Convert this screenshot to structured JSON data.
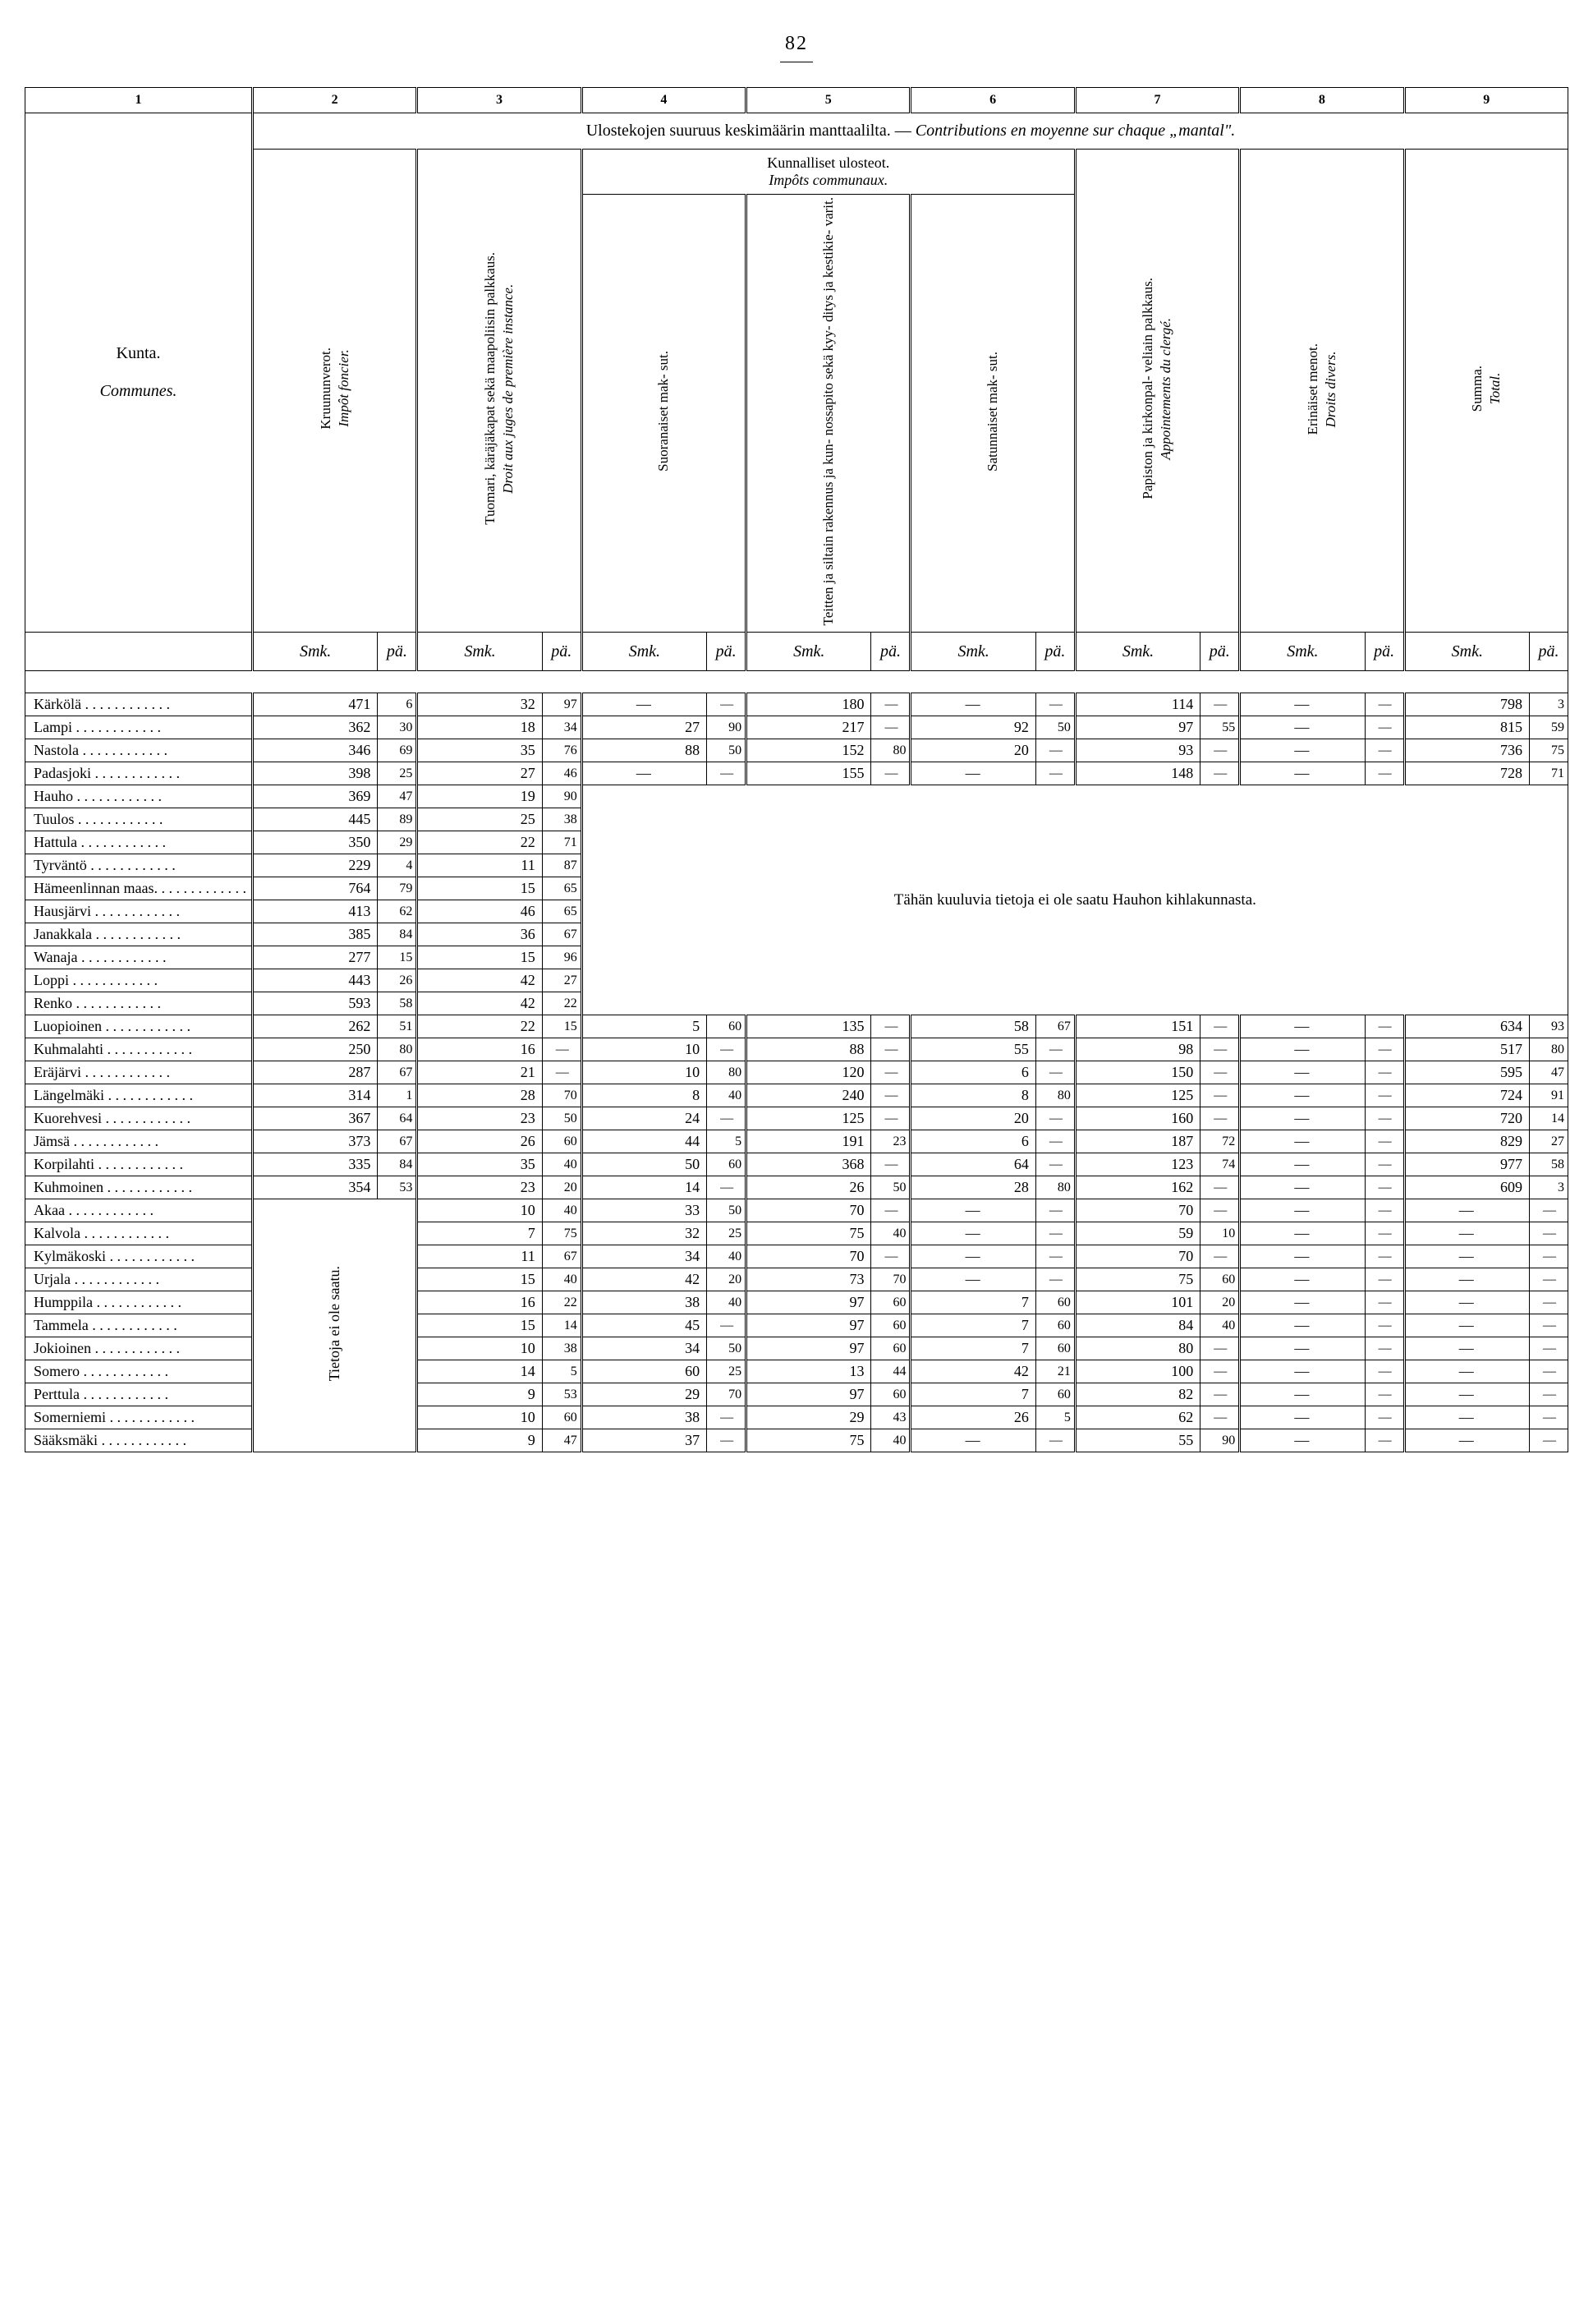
{
  "page_number": "82",
  "spanning_header": "Ulostekojen suuruus keskimäärin manttaalilta. —",
  "spanning_header_italic": "Contributions en moyenne sur chaque „mantal\".",
  "kunta_header": "Kunta.",
  "communes_header": "Communes.",
  "col_nums": [
    "1",
    "2",
    "3",
    "4",
    "5",
    "6",
    "7",
    "8",
    "9"
  ],
  "headers": {
    "kruunu": "Kruununverot.",
    "kruunu_it": "Impôt foncier.",
    "tuomari": "Tuomari, käräjäkapat sekä maapoliisin palkkaus.",
    "tuomari_it": "Droit aux juges de première instance.",
    "kunnalliset": "Kunnalliset ulosteot.",
    "kunnalliset_it": "Impôts communaux.",
    "suoranaiset": "Suoranaiset mak- sut.",
    "teitten": "Teitten ja siltain rakennus ja kun- nossapito sekä kyy- ditys ja kestikie- varit.",
    "satunnaiset": "Satunnaiset mak- sut.",
    "papiston": "Papiston ja kirkonpal- veliain palkkaus.",
    "papiston_it": "Appointements du clergé.",
    "erinaiset": "Erinäiset menot.",
    "erinaiset_it": "Droits divers.",
    "summa": "Summa.",
    "summa_it": "Total."
  },
  "unit_mk": "Smk.",
  "unit_p": "pä.",
  "note_hauhon": "Tähän kuuluvia tietoja ei ole saatu Hauhon kihlakunnasta.",
  "note_tietoja": "Tietoja ei ole saatu.",
  "rows": [
    {
      "name": "Kärkölä",
      "c2": "471",
      "c2p": "6",
      "c3": "32",
      "c3p": "97",
      "c4": "—",
      "c4p": "—",
      "c5": "180",
      "c5p": "—",
      "c6": "—",
      "c6p": "—",
      "c7": "114",
      "c7p": "—",
      "c8": "—",
      "c8p": "—",
      "c9": "798",
      "c9p": "3"
    },
    {
      "name": "Lampi",
      "c2": "362",
      "c2p": "30",
      "c3": "18",
      "c3p": "34",
      "c4": "27",
      "c4p": "90",
      "c5": "217",
      "c5p": "—",
      "c6": "92",
      "c6p": "50",
      "c7": "97",
      "c7p": "55",
      "c8": "—",
      "c8p": "—",
      "c9": "815",
      "c9p": "59"
    },
    {
      "name": "Nastola",
      "c2": "346",
      "c2p": "69",
      "c3": "35",
      "c3p": "76",
      "c4": "88",
      "c4p": "50",
      "c5": "152",
      "c5p": "80",
      "c6": "20",
      "c6p": "—",
      "c7": "93",
      "c7p": "—",
      "c8": "—",
      "c8p": "—",
      "c9": "736",
      "c9p": "75"
    },
    {
      "name": "Padasjoki",
      "c2": "398",
      "c2p": "25",
      "c3": "27",
      "c3p": "46",
      "c4": "—",
      "c4p": "—",
      "c5": "155",
      "c5p": "—",
      "c6": "—",
      "c6p": "—",
      "c7": "148",
      "c7p": "—",
      "c8": "—",
      "c8p": "—",
      "c9": "728",
      "c9p": "71"
    },
    {
      "name": "Hauho",
      "c2": "369",
      "c2p": "47",
      "c3": "19",
      "c3p": "90"
    },
    {
      "name": "Tuulos",
      "c2": "445",
      "c2p": "89",
      "c3": "25",
      "c3p": "38"
    },
    {
      "name": "Hattula",
      "c2": "350",
      "c2p": "29",
      "c3": "22",
      "c3p": "71"
    },
    {
      "name": "Tyrväntö",
      "c2": "229",
      "c2p": "4",
      "c3": "11",
      "c3p": "87"
    },
    {
      "name": "Hämeenlinnan maas.",
      "c2": "764",
      "c2p": "79",
      "c3": "15",
      "c3p": "65"
    },
    {
      "name": "Hausjärvi",
      "c2": "413",
      "c2p": "62",
      "c3": "46",
      "c3p": "65"
    },
    {
      "name": "Janakkala",
      "c2": "385",
      "c2p": "84",
      "c3": "36",
      "c3p": "67"
    },
    {
      "name": "Wanaja",
      "c2": "277",
      "c2p": "15",
      "c3": "15",
      "c3p": "96"
    },
    {
      "name": "Loppi",
      "c2": "443",
      "c2p": "26",
      "c3": "42",
      "c3p": "27"
    },
    {
      "name": "Renko",
      "c2": "593",
      "c2p": "58",
      "c3": "42",
      "c3p": "22"
    },
    {
      "name": "Luopioinen",
      "c2": "262",
      "c2p": "51",
      "c3": "22",
      "c3p": "15",
      "c4": "5",
      "c4p": "60",
      "c5": "135",
      "c5p": "—",
      "c6": "58",
      "c6p": "67",
      "c7": "151",
      "c7p": "—",
      "c8": "—",
      "c8p": "—",
      "c9": "634",
      "c9p": "93"
    },
    {
      "name": "Kuhmalahti",
      "c2": "250",
      "c2p": "80",
      "c3": "16",
      "c3p": "—",
      "c4": "10",
      "c4p": "—",
      "c5": "88",
      "c5p": "—",
      "c6": "55",
      "c6p": "—",
      "c7": "98",
      "c7p": "—",
      "c8": "—",
      "c8p": "—",
      "c9": "517",
      "c9p": "80"
    },
    {
      "name": "Eräjärvi",
      "c2": "287",
      "c2p": "67",
      "c3": "21",
      "c3p": "—",
      "c4": "10",
      "c4p": "80",
      "c5": "120",
      "c5p": "—",
      "c6": "6",
      "c6p": "—",
      "c7": "150",
      "c7p": "—",
      "c8": "—",
      "c8p": "—",
      "c9": "595",
      "c9p": "47"
    },
    {
      "name": "Längelmäki",
      "c2": "314",
      "c2p": "1",
      "c3": "28",
      "c3p": "70",
      "c4": "8",
      "c4p": "40",
      "c5": "240",
      "c5p": "—",
      "c6": "8",
      "c6p": "80",
      "c7": "125",
      "c7p": "—",
      "c8": "—",
      "c8p": "—",
      "c9": "724",
      "c9p": "91"
    },
    {
      "name": "Kuorehvesi",
      "c2": "367",
      "c2p": "64",
      "c3": "23",
      "c3p": "50",
      "c4": "24",
      "c4p": "—",
      "c5": "125",
      "c5p": "—",
      "c6": "20",
      "c6p": "—",
      "c7": "160",
      "c7p": "—",
      "c8": "—",
      "c8p": "—",
      "c9": "720",
      "c9p": "14"
    },
    {
      "name": "Jämsä",
      "c2": "373",
      "c2p": "67",
      "c3": "26",
      "c3p": "60",
      "c4": "44",
      "c4p": "5",
      "c5": "191",
      "c5p": "23",
      "c6": "6",
      "c6p": "—",
      "c7": "187",
      "c7p": "72",
      "c8": "—",
      "c8p": "—",
      "c9": "829",
      "c9p": "27"
    },
    {
      "name": "Korpilahti",
      "c2": "335",
      "c2p": "84",
      "c3": "35",
      "c3p": "40",
      "c4": "50",
      "c4p": "60",
      "c5": "368",
      "c5p": "—",
      "c6": "64",
      "c6p": "—",
      "c7": "123",
      "c7p": "74",
      "c8": "—",
      "c8p": "—",
      "c9": "977",
      "c9p": "58"
    },
    {
      "name": "Kuhmoinen",
      "c2": "354",
      "c2p": "53",
      "c3": "23",
      "c3p": "20",
      "c4": "14",
      "c4p": "—",
      "c5": "26",
      "c5p": "50",
      "c6": "28",
      "c6p": "80",
      "c7": "162",
      "c7p": "—",
      "c8": "—",
      "c8p": "—",
      "c9": "609",
      "c9p": "3"
    },
    {
      "name": "Akaa",
      "c3": "10",
      "c3p": "40",
      "c4": "33",
      "c4p": "50",
      "c5": "70",
      "c5p": "—",
      "c6": "—",
      "c6p": "—",
      "c7": "70",
      "c7p": "—",
      "c8": "—",
      "c8p": "—",
      "c9": "—",
      "c9p": "—"
    },
    {
      "name": "Kalvola",
      "c3": "7",
      "c3p": "75",
      "c4": "32",
      "c4p": "25",
      "c5": "75",
      "c5p": "40",
      "c6": "—",
      "c6p": "—",
      "c7": "59",
      "c7p": "10",
      "c8": "—",
      "c8p": "—",
      "c9": "—",
      "c9p": "—"
    },
    {
      "name": "Kylmäkoski",
      "c3": "11",
      "c3p": "67",
      "c4": "34",
      "c4p": "40",
      "c5": "70",
      "c5p": "—",
      "c6": "—",
      "c6p": "—",
      "c7": "70",
      "c7p": "—",
      "c8": "—",
      "c8p": "—",
      "c9": "—",
      "c9p": "—"
    },
    {
      "name": "Urjala",
      "c3": "15",
      "c3p": "40",
      "c4": "42",
      "c4p": "20",
      "c5": "73",
      "c5p": "70",
      "c6": "—",
      "c6p": "—",
      "c7": "75",
      "c7p": "60",
      "c8": "—",
      "c8p": "—",
      "c9": "—",
      "c9p": "—"
    },
    {
      "name": "Humppila",
      "c3": "16",
      "c3p": "22",
      "c4": "38",
      "c4p": "40",
      "c5": "97",
      "c5p": "60",
      "c6": "7",
      "c6p": "60",
      "c7": "101",
      "c7p": "20",
      "c8": "—",
      "c8p": "—",
      "c9": "—",
      "c9p": "—"
    },
    {
      "name": "Tammela",
      "c3": "15",
      "c3p": "14",
      "c4": "45",
      "c4p": "—",
      "c5": "97",
      "c5p": "60",
      "c6": "7",
      "c6p": "60",
      "c7": "84",
      "c7p": "40",
      "c8": "—",
      "c8p": "—",
      "c9": "—",
      "c9p": "—"
    },
    {
      "name": "Jokioinen",
      "c3": "10",
      "c3p": "38",
      "c4": "34",
      "c4p": "50",
      "c5": "97",
      "c5p": "60",
      "c6": "7",
      "c6p": "60",
      "c7": "80",
      "c7p": "—",
      "c8": "—",
      "c8p": "—",
      "c9": "—",
      "c9p": "—"
    },
    {
      "name": "Somero",
      "c3": "14",
      "c3p": "5",
      "c4": "60",
      "c4p": "25",
      "c5": "13",
      "c5p": "44",
      "c6": "42",
      "c6p": "21",
      "c7": "100",
      "c7p": "—",
      "c8": "—",
      "c8p": "—",
      "c9": "—",
      "c9p": "—"
    },
    {
      "name": "Perttula",
      "c3": "9",
      "c3p": "53",
      "c4": "29",
      "c4p": "70",
      "c5": "97",
      "c5p": "60",
      "c6": "7",
      "c6p": "60",
      "c7": "82",
      "c7p": "—",
      "c8": "—",
      "c8p": "—",
      "c9": "—",
      "c9p": "—"
    },
    {
      "name": "Somerniemi",
      "c3": "10",
      "c3p": "60",
      "c4": "38",
      "c4p": "—",
      "c5": "29",
      "c5p": "43",
      "c6": "26",
      "c6p": "5",
      "c7": "62",
      "c7p": "—",
      "c8": "—",
      "c8p": "—",
      "c9": "—",
      "c9p": "—"
    },
    {
      "name": "Sääksmäki",
      "c3": "9",
      "c3p": "47",
      "c4": "37",
      "c4p": "—",
      "c5": "75",
      "c5p": "40",
      "c6": "—",
      "c6p": "—",
      "c7": "55",
      "c7p": "90",
      "c8": "—",
      "c8p": "—",
      "c9": "—",
      "c9p": "—"
    }
  ]
}
